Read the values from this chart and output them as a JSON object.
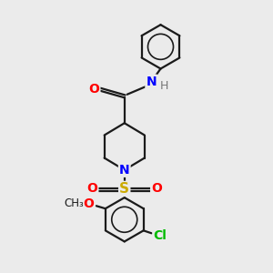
{
  "bg_color": "#ebebeb",
  "bond_color": "#1a1a1a",
  "bond_width": 1.6,
  "atom_colors": {
    "N": "#0000ff",
    "O": "#ff0000",
    "S": "#ccaa00",
    "Cl": "#00bb00",
    "C": "#1a1a1a",
    "H": "#777777"
  },
  "fig_size": [
    3.0,
    3.0
  ],
  "dpi": 100,
  "xlim": [
    0,
    10
  ],
  "ylim": [
    0,
    10
  ]
}
